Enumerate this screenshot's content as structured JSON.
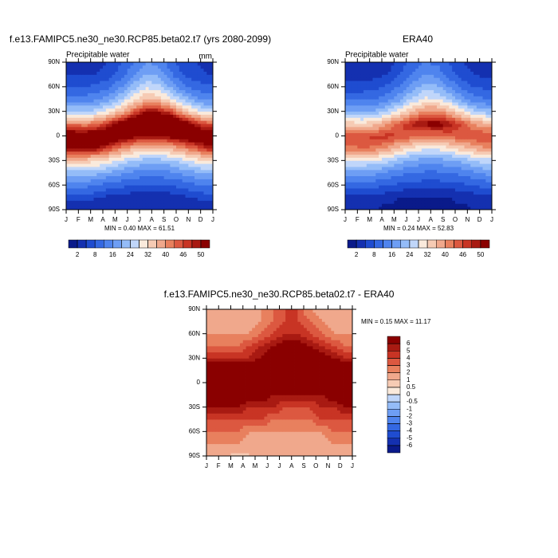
{
  "chart_data": [
    {
      "type": "contour",
      "title": "f.e13.FAMIPC5.ne30_ne30.RCP85.beta02.t7 (yrs 2080-2099)",
      "subtitle": "Precipitable water",
      "units": "mm",
      "stats": "MIN =  0.40 MAX =  61.51",
      "xticks": [
        "J",
        "F",
        "M",
        "A",
        "M",
        "J",
        "J",
        "A",
        "S",
        "O",
        "N",
        "D",
        "J"
      ],
      "ylim": [
        -90,
        90
      ],
      "yticks": [
        {
          "value": -90,
          "label": "90S"
        },
        {
          "value": -60,
          "label": "60S"
        },
        {
          "value": -30,
          "label": "30S"
        },
        0,
        {
          "value": 30,
          "label": "30N"
        },
        {
          "value": 60,
          "label": "60N"
        },
        {
          "value": 90,
          "label": "90N"
        }
      ],
      "y": [
        -90,
        -75,
        -60,
        -45,
        -30,
        -15,
        0,
        15,
        30,
        45,
        60,
        75,
        90
      ],
      "z": [
        [
          3,
          3,
          2,
          2,
          2,
          2,
          2,
          2,
          2,
          2,
          3,
          3
        ],
        [
          6,
          6,
          5,
          4,
          3,
          3,
          3,
          3,
          3,
          4,
          5,
          6
        ],
        [
          13,
          13,
          12,
          10,
          9,
          8,
          8,
          8,
          8,
          9,
          11,
          12
        ],
        [
          22,
          22,
          21,
          19,
          17,
          15,
          14,
          14,
          15,
          17,
          19,
          21
        ],
        [
          34,
          34,
          33,
          30,
          27,
          24,
          22,
          22,
          23,
          26,
          29,
          32
        ],
        [
          50,
          51,
          50,
          46,
          41,
          37,
          35,
          35,
          37,
          40,
          44,
          48
        ],
        [
          55,
          55,
          56,
          56,
          54,
          52,
          50,
          50,
          52,
          54,
          55,
          55
        ],
        [
          42,
          41,
          43,
          48,
          54,
          58,
          60,
          61,
          59,
          55,
          49,
          45
        ],
        [
          25,
          24,
          26,
          30,
          36,
          44,
          50,
          50,
          46,
          38,
          31,
          27
        ],
        [
          14,
          14,
          15,
          19,
          24,
          31,
          36,
          35,
          30,
          23,
          18,
          15
        ],
        [
          8,
          8,
          9,
          11,
          16,
          22,
          27,
          26,
          20,
          14,
          10,
          9
        ],
        [
          5,
          5,
          5,
          6,
          10,
          15,
          20,
          19,
          13,
          8,
          6,
          5
        ],
        [
          4,
          4,
          4,
          5,
          8,
          12,
          16,
          15,
          10,
          6,
          5,
          4
        ]
      ],
      "levels": [
        2,
        {
          "value": 5,
          "label": null
        },
        8,
        {
          "value": 12,
          "label": null
        },
        16,
        {
          "value": 20,
          "label": null
        },
        24,
        {
          "value": 28,
          "label": null
        },
        32,
        {
          "value": 36,
          "label": null
        },
        40,
        {
          "value": 43,
          "label": null
        },
        46,
        {
          "value": 48,
          "label": null
        },
        50
      ],
      "colors": [
        "#0a1a8a",
        "#1430b0",
        "#1f4cd0",
        "#3468e2",
        "#4f84ee",
        "#6e9ef4",
        "#94bcf8",
        "#c0d6fa",
        "#faeadc",
        "#f6cbb4",
        "#f0a88c",
        "#e8805e",
        "#dc5840",
        "#c83424",
        "#a81a12",
        "#8a0000"
      ]
    },
    {
      "type": "contour",
      "title": "ERA40",
      "subtitle": "Precipitable water",
      "stats": "MIN =  0.24 MAX =  52.83",
      "xticks": [
        "J",
        "F",
        "M",
        "A",
        "M",
        "J",
        "J",
        "A",
        "S",
        "O",
        "N",
        "D",
        "J"
      ],
      "ylim": [
        -90,
        90
      ],
      "yticks": [
        {
          "value": -90,
          "label": "90S"
        },
        {
          "value": -60,
          "label": "60S"
        },
        {
          "value": -30,
          "label": "30S"
        },
        0,
        {
          "value": 30,
          "label": "30N"
        },
        {
          "value": 60,
          "label": "60N"
        },
        {
          "value": 90,
          "label": "90N"
        }
      ],
      "y": [
        -90,
        -75,
        -60,
        -45,
        -30,
        -15,
        0,
        15,
        30,
        45,
        60,
        75,
        90
      ],
      "z": [
        [
          2,
          2,
          2,
          1,
          1,
          1,
          1,
          1,
          1,
          1,
          2,
          2
        ],
        [
          4,
          4,
          3,
          3,
          2,
          2,
          2,
          2,
          2,
          3,
          3,
          4
        ],
        [
          10,
          10,
          9,
          8,
          7,
          6,
          6,
          6,
          6,
          7,
          8,
          9
        ],
        [
          18,
          18,
          17,
          15,
          13,
          12,
          11,
          11,
          12,
          13,
          15,
          17
        ],
        [
          28,
          28,
          27,
          25,
          22,
          19,
          18,
          18,
          19,
          21,
          24,
          26
        ],
        [
          42,
          43,
          42,
          39,
          34,
          31,
          29,
          29,
          31,
          34,
          37,
          40
        ],
        [
          46,
          46,
          47,
          47,
          46,
          44,
          42,
          42,
          44,
          45,
          46,
          46
        ],
        [
          34,
          33,
          35,
          40,
          45,
          49,
          51,
          52,
          50,
          46,
          40,
          37
        ],
        [
          20,
          19,
          21,
          25,
          30,
          36,
          41,
          41,
          37,
          31,
          25,
          22
        ],
        [
          11,
          11,
          12,
          15,
          19,
          25,
          29,
          28,
          24,
          18,
          14,
          12
        ],
        [
          6,
          6,
          7,
          9,
          13,
          18,
          22,
          21,
          16,
          11,
          8,
          7
        ],
        [
          4,
          4,
          4,
          5,
          8,
          12,
          16,
          15,
          10,
          6,
          5,
          4
        ],
        [
          3,
          3,
          3,
          4,
          6,
          9,
          12,
          11,
          8,
          5,
          4,
          3
        ]
      ],
      "levels": [
        2,
        {
          "value": 5,
          "label": null
        },
        8,
        {
          "value": 12,
          "label": null
        },
        16,
        {
          "value": 20,
          "label": null
        },
        24,
        {
          "value": 28,
          "label": null
        },
        32,
        {
          "value": 36,
          "label": null
        },
        40,
        {
          "value": 43,
          "label": null
        },
        46,
        {
          "value": 48,
          "label": null
        },
        50
      ],
      "colors": [
        "#0a1a8a",
        "#1430b0",
        "#1f4cd0",
        "#3468e2",
        "#4f84ee",
        "#6e9ef4",
        "#94bcf8",
        "#c0d6fa",
        "#faeadc",
        "#f6cbb4",
        "#f0a88c",
        "#e8805e",
        "#dc5840",
        "#c83424",
        "#a81a12",
        "#8a0000"
      ]
    },
    {
      "type": "contour",
      "title": "f.e13.FAMIPC5.ne30_ne30.RCP85.beta02.t7 - ERA40",
      "stats": "MIN =  0.15 MAX = 11.17",
      "xticks": [
        "J",
        "F",
        "M",
        "A",
        "M",
        "J",
        "J",
        "A",
        "S",
        "O",
        "N",
        "D",
        "J"
      ],
      "ylim": [
        -90,
        90
      ],
      "yticks": [
        {
          "value": -90,
          "label": "90S"
        },
        {
          "value": -60,
          "label": "60S"
        },
        {
          "value": -30,
          "label": "30S"
        },
        0,
        {
          "value": 30,
          "label": "30N"
        },
        {
          "value": 60,
          "label": "60N"
        },
        {
          "value": 90,
          "label": "90N"
        }
      ],
      "y": [
        -90,
        -75,
        -60,
        -45,
        -30,
        -15,
        0,
        15,
        30,
        45,
        60,
        75,
        90
      ],
      "z": [
        [
          1,
          1,
          0.7,
          1,
          1,
          1,
          1,
          1,
          1,
          1,
          1,
          1
        ],
        [
          2,
          2,
          2,
          1,
          1,
          1,
          1,
          1,
          1,
          1,
          2,
          2
        ],
        [
          3,
          3,
          3,
          2,
          2,
          2,
          2,
          2,
          2,
          2,
          3,
          3
        ],
        [
          4,
          4,
          4,
          4,
          4,
          3,
          3,
          3,
          3,
          4,
          4,
          4
        ],
        [
          6,
          6,
          6,
          5,
          5,
          5,
          4,
          4,
          4,
          5,
          5,
          6
        ],
        [
          8,
          8,
          8,
          7,
          7,
          6,
          6,
          6,
          6,
          6,
          7,
          8
        ],
        [
          9,
          9,
          9,
          9,
          8,
          8,
          8,
          8,
          8,
          9,
          9,
          9
        ],
        [
          8,
          8,
          8,
          8,
          9,
          9,
          9,
          9,
          9,
          9,
          9,
          8
        ],
        [
          5,
          5,
          5,
          5,
          6,
          8,
          9,
          9,
          9,
          7,
          6,
          5
        ],
        [
          3,
          3,
          3,
          4,
          5,
          6,
          7,
          7,
          6,
          5,
          4,
          3
        ],
        [
          2,
          2,
          2,
          2,
          3,
          4,
          5,
          5,
          4,
          3,
          2,
          2
        ],
        [
          1,
          1,
          1,
          1,
          2,
          3,
          4,
          4,
          3,
          2,
          1,
          1
        ],
        [
          1,
          1,
          1,
          1,
          2,
          3,
          4,
          4,
          2,
          1,
          1,
          1
        ]
      ],
      "levels": [
        -6,
        -5,
        -4,
        -3,
        -2,
        -1,
        -0.5,
        0,
        0.5,
        1,
        2,
        3,
        4,
        5,
        6
      ],
      "colors": [
        "#0a1a8a",
        "#1430b0",
        "#1f4cd0",
        "#3468e2",
        "#4f84ee",
        "#6e9ef4",
        "#94bcf8",
        "#c0d6fa",
        "#faeadc",
        "#f6cbb4",
        "#f0a88c",
        "#e8805e",
        "#dc5840",
        "#c83424",
        "#a81a12",
        "#8a0000"
      ]
    }
  ]
}
